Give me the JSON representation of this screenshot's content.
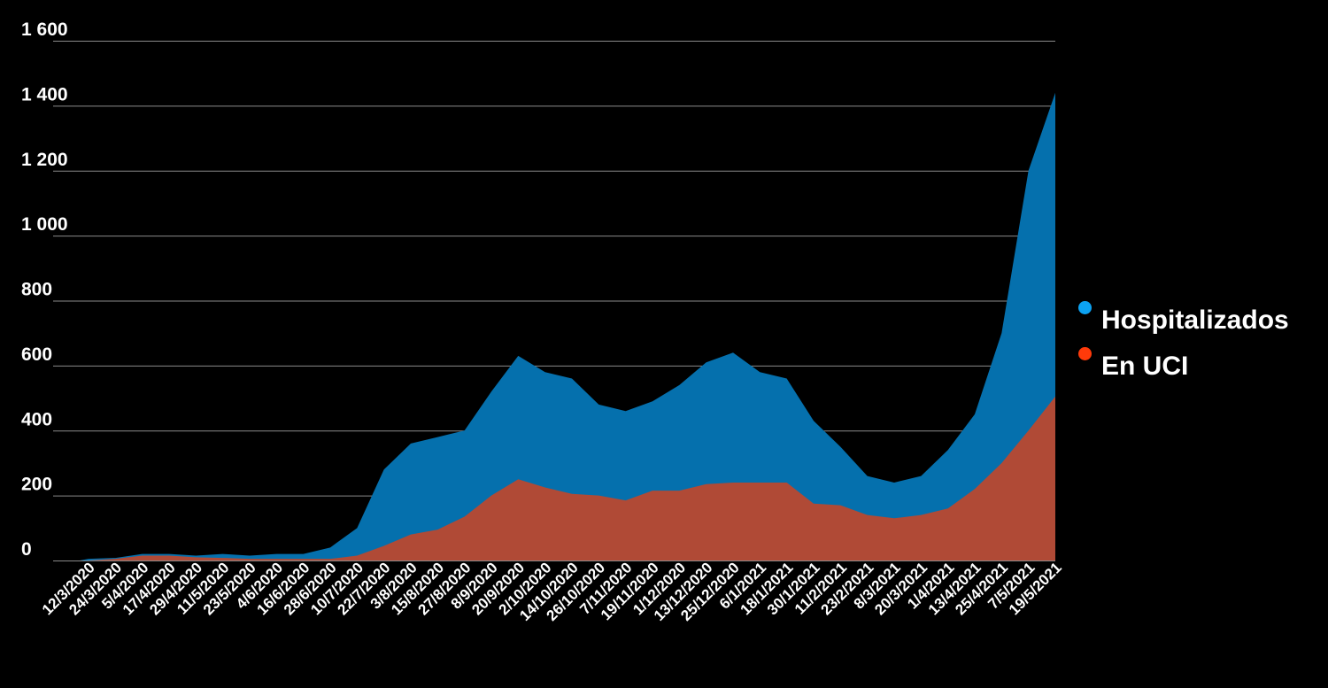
{
  "chart_data": {
    "type": "area",
    "title": "",
    "xlabel": "",
    "ylabel": "",
    "ylim": [
      0,
      1600
    ],
    "yticks": [
      0,
      200,
      400,
      600,
      800,
      1000,
      1200,
      1400,
      1600
    ],
    "ytick_labels": [
      "0",
      "200",
      "400",
      "600",
      "800",
      "1 000",
      "1 200",
      "1 400",
      "1 600"
    ],
    "grid": true,
    "legend_position": "right",
    "categories": [
      "12/3/2020",
      "24/3/2020",
      "5/4/2020",
      "17/4/2020",
      "29/4/2020",
      "11/5/2020",
      "23/5/2020",
      "4/6/2020",
      "16/6/2020",
      "28/6/2020",
      "10/7/2020",
      "22/7/2020",
      "3/8/2020",
      "15/8/2020",
      "27/8/2020",
      "8/9/2020",
      "20/9/2020",
      "2/10/2020",
      "14/10/2020",
      "26/10/2020",
      "7/11/2020",
      "19/11/2020",
      "1/12/2020",
      "13/12/2020",
      "25/12/2020",
      "6/1/2021",
      "18/1/2021",
      "30/1/2021",
      "11/2/2021",
      "23/2/2021",
      "8/3/2021",
      "20/3/2021",
      "1/4/2021",
      "13/4/2021",
      "25/4/2021",
      "7/5/2021",
      "19/5/2021"
    ],
    "series": [
      {
        "name": "Hospitalizados",
        "color": "#0570ad",
        "legend_color": "#0ca2f2",
        "values": [
          5,
          8,
          20,
          20,
          15,
          20,
          15,
          20,
          20,
          40,
          100,
          280,
          360,
          380,
          400,
          520,
          630,
          580,
          560,
          480,
          460,
          490,
          540,
          610,
          640,
          580,
          560,
          430,
          350,
          260,
          240,
          260,
          340,
          450,
          700,
          1200,
          1440
        ]
      },
      {
        "name": "En UCI",
        "color": "#b04a36",
        "legend_color": "#ff3a0a",
        "values": [
          0,
          5,
          15,
          15,
          10,
          8,
          5,
          5,
          5,
          5,
          15,
          45,
          80,
          95,
          135,
          200,
          250,
          225,
          205,
          200,
          185,
          215,
          215,
          235,
          240,
          240,
          240,
          175,
          170,
          140,
          130,
          140,
          160,
          220,
          300,
          400,
          505
        ]
      }
    ]
  }
}
